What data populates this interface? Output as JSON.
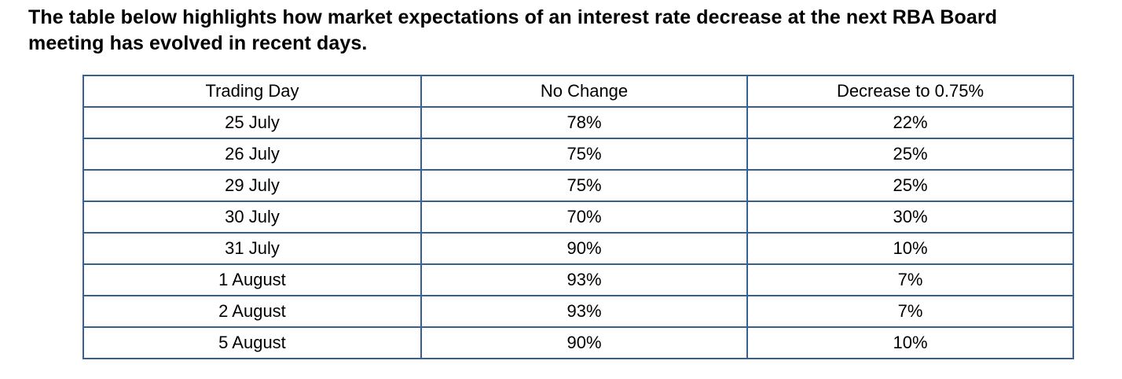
{
  "page": {
    "heading": "The table below highlights how market expectations of an interest rate decrease at the next RBA Board meeting has evolved in recent days."
  },
  "colors": {
    "table_border": "#366092",
    "text": "#000000",
    "background": "#ffffff"
  },
  "table": {
    "headers": [
      "Trading Day",
      "No Change",
      "Decrease to 0.75%"
    ],
    "rows": [
      [
        "25 July",
        "78%",
        "22%"
      ],
      [
        "26 July",
        "75%",
        "25%"
      ],
      [
        "29 July",
        "75%",
        "25%"
      ],
      [
        "30 July",
        "70%",
        "30%"
      ],
      [
        "31 July",
        "90%",
        "10%"
      ],
      [
        "1 August",
        "93%",
        "7%"
      ],
      [
        "2 August",
        "93%",
        "7%"
      ],
      [
        "5 August",
        "90%",
        "10%"
      ]
    ]
  },
  "chart_data": {
    "type": "table",
    "title": "Market expectations of an interest rate decrease at the next RBA Board meeting",
    "categories": [
      "25 July",
      "26 July",
      "29 July",
      "30 July",
      "31 July",
      "1 August",
      "2 August",
      "5 August"
    ],
    "series": [
      {
        "name": "No Change",
        "values": [
          78,
          75,
          75,
          70,
          90,
          93,
          93,
          90
        ]
      },
      {
        "name": "Decrease to 0.75%",
        "values": [
          22,
          25,
          25,
          30,
          10,
          7,
          7,
          10
        ]
      }
    ],
    "value_unit": "%"
  }
}
